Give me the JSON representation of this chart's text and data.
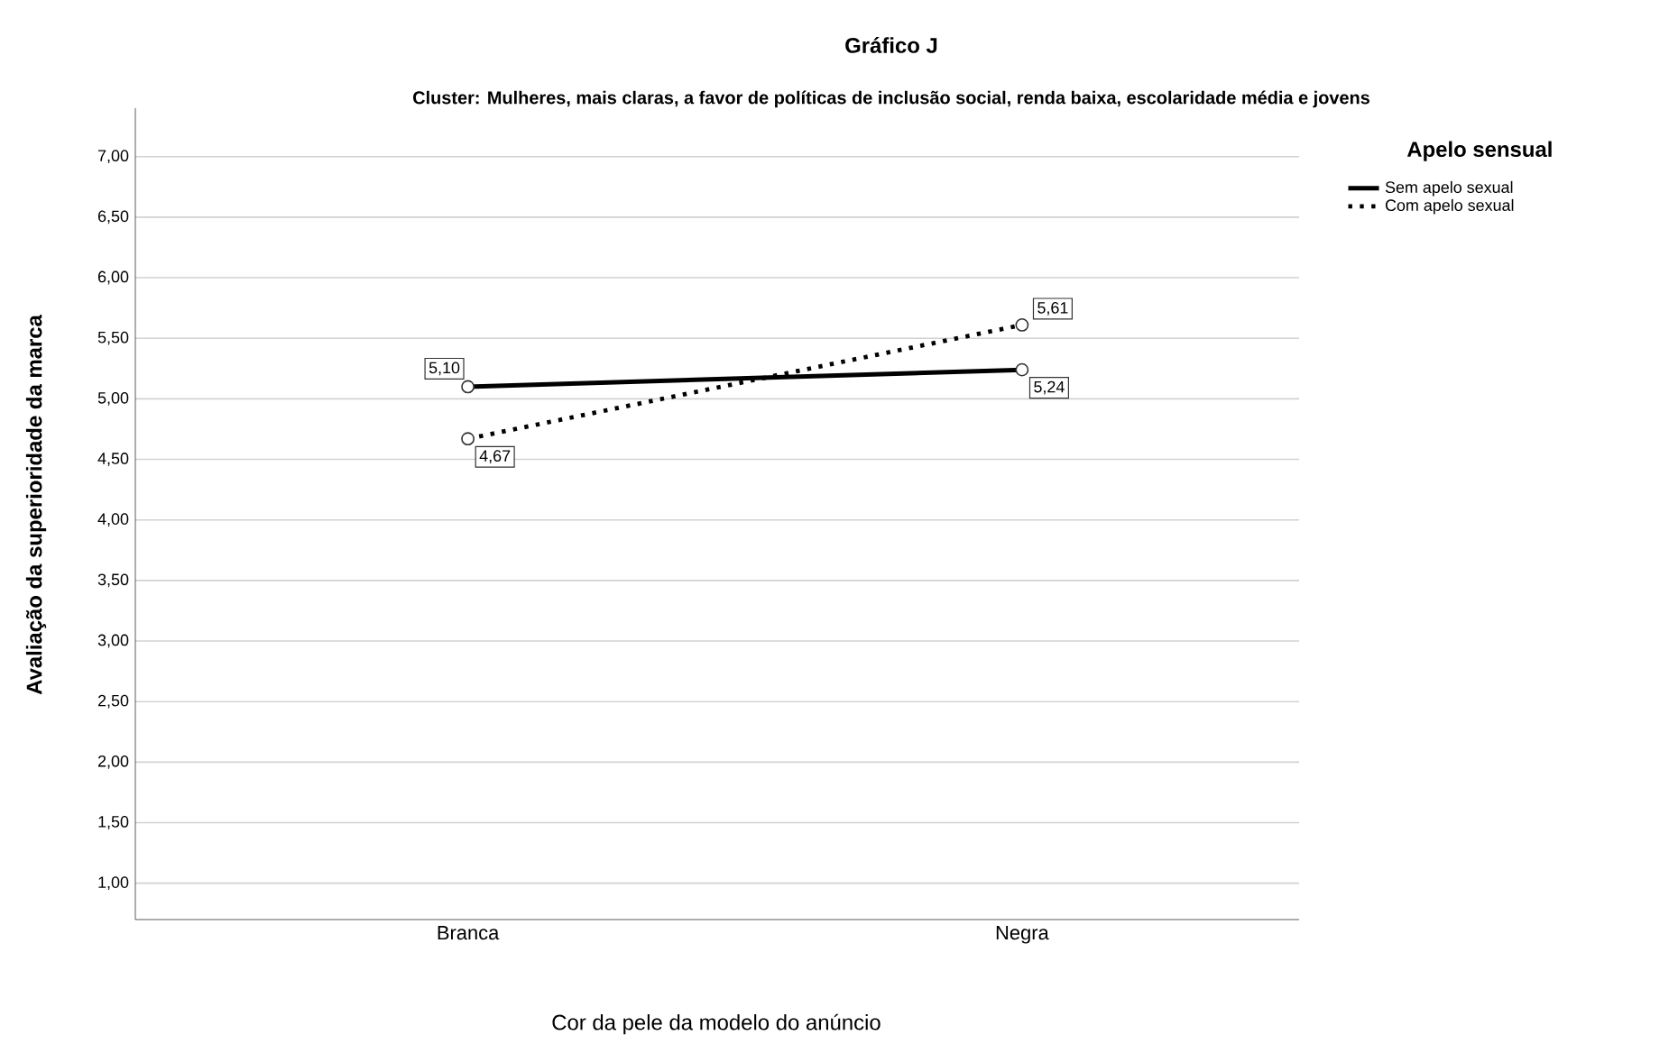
{
  "chart_data": {
    "type": "line",
    "title": "Gráfico J",
    "subtitle": "Cluster: Mulheres, mais claras, a favor de políticas de inclusão social, renda baixa, escolaridade média e jovens",
    "xlabel": "Cor da pele da modelo do anúncio",
    "ylabel": "Avaliação da superioridade da marca",
    "legend_title": "Apelo sensual",
    "categories": [
      "Branca",
      "Negra"
    ],
    "series": [
      {
        "name": "Sem apelo sexual",
        "color": "#000000",
        "line_style": "solid",
        "values": [
          5.1,
          5.24
        ],
        "value_labels": [
          "5,10",
          "5,24"
        ]
      },
      {
        "name": "Com apelo sexual",
        "color": "#000000",
        "line_style": "dotted",
        "values": [
          4.67,
          5.61
        ],
        "value_labels": [
          "4,67",
          "5,61"
        ]
      }
    ],
    "ylim": [
      0.7,
      7.4
    ],
    "yticks": [
      {
        "value": 1,
        "label": "1,00"
      },
      {
        "value": 1.5,
        "label": "1,50"
      },
      {
        "value": 2,
        "label": "2,00"
      },
      {
        "value": 2.5,
        "label": "2,50"
      },
      {
        "value": 3,
        "label": "3,00"
      },
      {
        "value": 3.5,
        "label": "3,50"
      },
      {
        "value": 4,
        "label": "4,00"
      },
      {
        "value": 4.5,
        "label": "4,50"
      },
      {
        "value": 5,
        "label": "5,00"
      },
      {
        "value": 5.5,
        "label": "5,50"
      },
      {
        "value": 6,
        "label": "6,00"
      },
      {
        "value": 6.5,
        "label": "6,50"
      },
      {
        "value": 7,
        "label": "7,00"
      }
    ],
    "grid": "y",
    "legend": "top right",
    "marker": "circle"
  }
}
